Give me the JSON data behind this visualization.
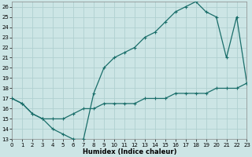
{
  "xlabel": "Humidex (Indice chaleur)",
  "bg_color": "#cce5e5",
  "grid_color": "#b0d0d0",
  "line_color": "#1a6e6a",
  "upper_x": [
    0,
    1,
    2,
    3,
    4,
    5,
    6,
    7,
    8,
    9,
    10,
    11,
    12,
    13,
    14,
    15,
    16,
    17,
    18,
    19,
    20,
    21,
    22,
    23
  ],
  "upper_y": [
    17,
    16.5,
    15.5,
    15.0,
    14.0,
    13.5,
    13.0,
    13.0,
    17.5,
    20.0,
    21.0,
    21.5,
    22.0,
    23.0,
    23.5,
    24.5,
    25.5,
    26.0,
    26.5,
    25.5,
    25.0,
    21.0,
    25.0,
    18.5
  ],
  "lower_x": [
    0,
    1,
    2,
    3,
    4,
    5,
    6,
    7,
    8,
    9,
    10,
    11,
    12,
    13,
    14,
    15,
    16,
    17,
    18,
    19,
    20,
    21,
    22,
    23
  ],
  "lower_y": [
    17.0,
    16.5,
    15.5,
    15.0,
    15.0,
    15.0,
    15.5,
    16.0,
    16.0,
    16.5,
    16.5,
    16.5,
    16.5,
    17.0,
    17.0,
    17.0,
    17.5,
    17.5,
    17.5,
    17.5,
    18.0,
    18.0,
    18.0,
    18.5
  ],
  "xlim": [
    0,
    23
  ],
  "ylim": [
    13,
    26.5
  ],
  "yticks": [
    13,
    14,
    15,
    16,
    17,
    18,
    19,
    20,
    21,
    22,
    23,
    24,
    25,
    26
  ],
  "xticks": [
    0,
    1,
    2,
    3,
    4,
    5,
    6,
    7,
    8,
    9,
    10,
    11,
    12,
    13,
    14,
    15,
    16,
    17,
    18,
    19,
    20,
    21,
    22,
    23
  ],
  "tick_fontsize": 5.0,
  "xlabel_fontsize": 6.0,
  "linewidth": 0.9,
  "markersize": 2.5
}
